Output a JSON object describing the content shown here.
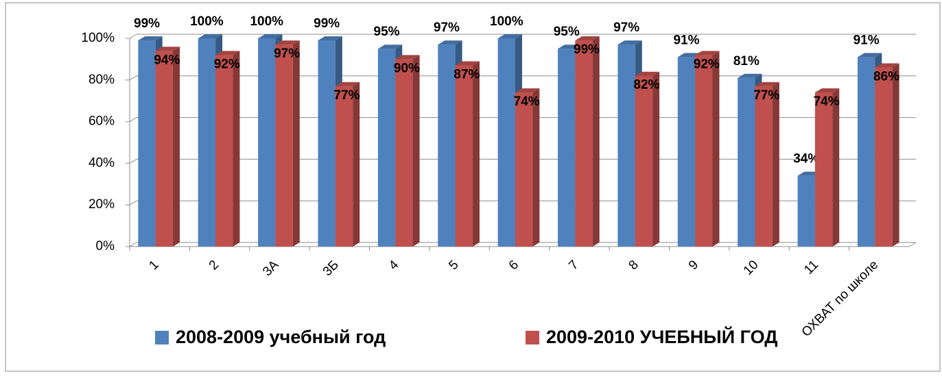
{
  "chart_data": {
    "type": "bar",
    "categories": [
      "1",
      "2",
      "3А",
      "3Б",
      "4",
      "5",
      "6",
      "7",
      "8",
      "9",
      "10",
      "11",
      "ОХВАТ по школе"
    ],
    "series": [
      {
        "name": "2008-2009 учебный год",
        "color": "#4f81bd",
        "values": [
          99,
          100,
          100,
          99,
          95,
          97,
          100,
          95,
          97,
          91,
          81,
          34,
          91
        ],
        "value_labels": [
          "99%",
          "100%",
          "100%",
          "99%",
          "95%",
          "97%",
          "100%",
          "95%",
          "97%",
          "91%",
          "81%",
          "34%",
          "91%"
        ]
      },
      {
        "name": "2009-2010 УЧЕБНЫЙ ГОД",
        "color": "#c0504d",
        "values": [
          94,
          92,
          97,
          77,
          90,
          87,
          74,
          99,
          82,
          92,
          77,
          74,
          86
        ],
        "value_labels": [
          "94%",
          "92%",
          "97%",
          "77%",
          "90%",
          "87%",
          "74%",
          "99%",
          "82%",
          "92%",
          "77%",
          "74%",
          "86%"
        ]
      }
    ],
    "ylim": [
      0,
      100
    ],
    "yticks": [
      {
        "value": 0,
        "label": "0%"
      },
      {
        "value": 20,
        "label": "20%"
      },
      {
        "value": 40,
        "label": "40%"
      },
      {
        "value": 60,
        "label": "60%"
      },
      {
        "value": 80,
        "label": "80%"
      },
      {
        "value": 100,
        "label": "100%"
      }
    ],
    "grid": true,
    "legend": "bottom"
  }
}
